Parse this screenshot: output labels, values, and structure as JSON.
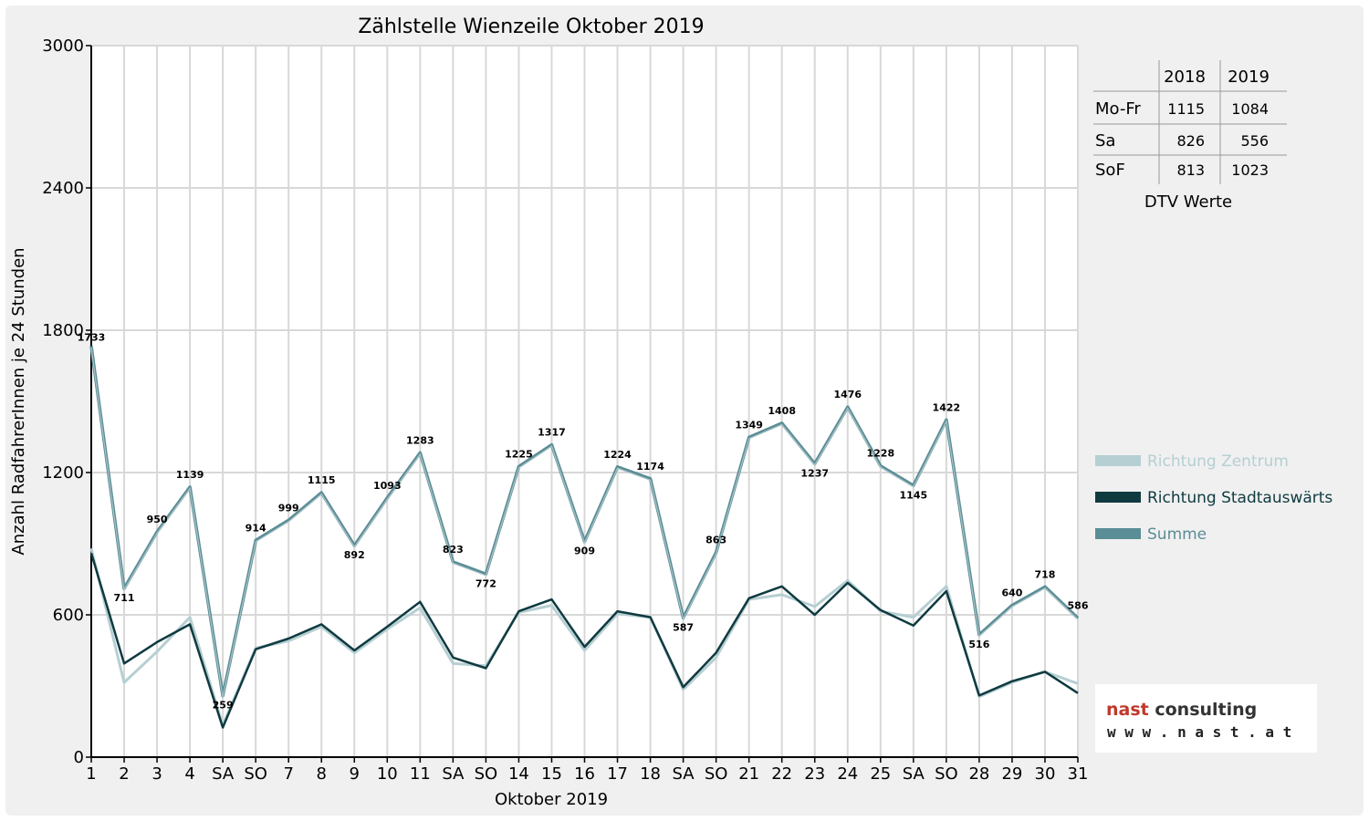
{
  "chart_data": {
    "type": "line",
    "title": "Zählstelle Wienzeile Oktober 2019",
    "xlabel": "Oktober 2019",
    "ylabel": "Anzahl RadfahrerInnen je 24 Stunden",
    "ylim": [
      0,
      3000
    ],
    "yticks": [
      "0",
      "600",
      "1200",
      "1800",
      "2400",
      "3000"
    ],
    "grid": true,
    "legend_position": "right",
    "categories": [
      "1",
      "2",
      "3",
      "4",
      "SA",
      "SO",
      "7",
      "8",
      "9",
      "10",
      "11",
      "SA",
      "SO",
      "14",
      "15",
      "16",
      "17",
      "18",
      "SA",
      "SO",
      "21",
      "22",
      "23",
      "24",
      "25",
      "SA",
      "SO",
      "28",
      "29",
      "30",
      "31"
    ],
    "weekend_flags": [
      false,
      false,
      false,
      false,
      false,
      true,
      false,
      false,
      false,
      false,
      false,
      false,
      true,
      false,
      false,
      false,
      false,
      false,
      false,
      true,
      false,
      false,
      false,
      false,
      false,
      false,
      true,
      false,
      false,
      false,
      false
    ],
    "series": [
      {
        "name": "Richtung Zentrum",
        "color": "#b6cfd2",
        "values": [
          880,
          315,
          445,
          590,
          135,
          460,
          490,
          550,
          440,
          540,
          630,
          395,
          385,
          610,
          640,
          450,
          605,
          590,
          285,
          420,
          665,
          685,
          635,
          745,
          615,
          590,
          720,
          255,
          315,
          360,
          310
        ]
      },
      {
        "name": "Richtung Stadtauswärts",
        "color": "#0f3a40",
        "values": [
          860,
          395,
          485,
          560,
          125,
          455,
          500,
          560,
          450,
          550,
          655,
          420,
          375,
          615,
          665,
          465,
          615,
          590,
          295,
          440,
          670,
          720,
          600,
          735,
          620,
          555,
          700,
          260,
          320,
          360,
          270
        ]
      },
      {
        "name": "Summe",
        "color": "#5b8d96",
        "values": [
          1733,
          711,
          950,
          1139,
          259,
          914,
          999,
          1115,
          892,
          1093,
          1283,
          823,
          772,
          1225,
          1317,
          909,
          1224,
          1174,
          587,
          863,
          1349,
          1408,
          1237,
          1476,
          1228,
          1145,
          1422,
          516,
          640,
          718,
          586
        ]
      }
    ],
    "data_labels": [
      "1733",
      "711",
      "950",
      "1139",
      "259",
      "914",
      "999",
      "1115",
      "892",
      "1093",
      "1283",
      "823",
      "772",
      "1225",
      "1317",
      "909",
      "1224",
      "1174",
      "587",
      "863",
      "1349",
      "1408",
      "1237",
      "1476",
      "1228",
      "1145",
      "1422",
      "516",
      "640",
      "718",
      "586"
    ]
  },
  "summary_table": {
    "headers": [
      "",
      "2018",
      "2019"
    ],
    "rows": [
      {
        "label": "Mo-Fr",
        "v2018": "1115",
        "v2019": "1084"
      },
      {
        "label": "Sa",
        "v2018": "826",
        "v2019": "556"
      },
      {
        "label": "SoF",
        "v2018": "813",
        "v2019": "1023"
      }
    ],
    "caption": "DTV Werte"
  },
  "logo": {
    "line1_a": "nast",
    "line1_b": " consulting",
    "line2": "w w w . n a s t . a t",
    "accent_color": "#c0392b",
    "dark_color": "#333333"
  },
  "colors": {
    "weekend_label": "#e00000",
    "axis": "#000000",
    "grid": "#d8d8d8"
  }
}
